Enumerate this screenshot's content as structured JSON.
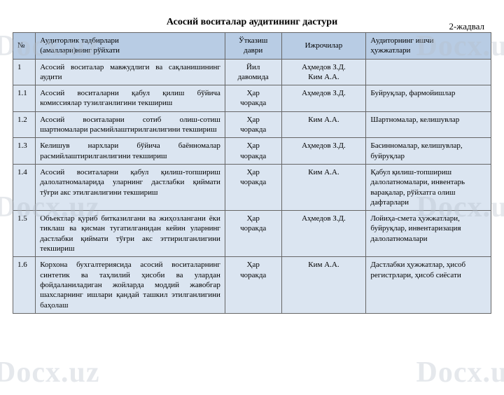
{
  "watermark_text": "Docx.uz",
  "header_label": "2-жадвал",
  "title": "Асосий воситалар аудитининг дастури",
  "columns": {
    "num": "№",
    "activities": "Аудиторлик тадбирлари\n(амаллари)нинг рўйхати",
    "period": "Ўтказиш\nдаври",
    "executors": "Ижрочилар",
    "docs": "Аудиторнинг ишчи\nҳужжатлари"
  },
  "rows": [
    {
      "num": "1",
      "act": "Асосий воситалар мавжудлиги ва сақланишининг аудити",
      "per": "Йил\nдавомида",
      "exec": "Аҳмедов З.Д.\nКим А.А.",
      "doc": ""
    },
    {
      "num": "1.1",
      "act": "Асосий воситаларни қабул қилиш бўйича комиссиялар тузилганлигини текшириш",
      "per": "Ҳар\nчоракда",
      "exec": "Аҳмедов З.Д.",
      "doc": "Буйруқлар, фармойишлар"
    },
    {
      "num": "1.2",
      "act": "Асосий воситаларни сотиб олиш-сотиш шартномалари расмийлаштирилганлигини текшириш",
      "per": "Ҳар\nчоракда",
      "exec": "Ким А.А.",
      "doc": "Шартномалар, келишувлар"
    },
    {
      "num": "1.3",
      "act": "Келишув нархлари бўйича баённомалар расмийлаштирилганлигини текшириш",
      "per": "Ҳар\nчоракда",
      "exec": "Аҳмедов З.Д.",
      "doc": "Басинномалар, келишувлар, буйруқлар"
    },
    {
      "num": "1.4",
      "act": "Асосий воситаларни қабул қилиш-топшириш далолатномаларида уларнинг дастлабки қиймати тўғри акс этилганлигини текшириш",
      "per": "Ҳар\nчоракда",
      "exec": "Ким А.А.",
      "doc": "Қабул қилиш-топшириш далолатномалари, инвентарь варақалар, рўйхатга олиш дафтарлари"
    },
    {
      "num": "1.5",
      "act": "Объектлар қуриб битказилгани ва жиҳозлангани ёки тиклаш ва қисман тугатилганидан кейин уларнинг дастлабки қиймати тўғри акс эттирилганлигини текшириш",
      "per": "Ҳар\nчоракда",
      "exec": "Аҳмедов З.Д.",
      "doc": "Лойиҳа-смета ҳужжатлари, буйруқлар, инвентаризация далолатномалари"
    },
    {
      "num": "1.6",
      "act": "Корхона бухгалтериясида асосий воситаларнинг синтетик ва таҳлилий ҳисоби ва улардан фойдаланиладиган жойларда моддий жавобгар шахсларнинг ишлари қандай ташкил этилганлигини баҳолаш",
      "per": "Ҳар\nчоракда",
      "exec": "Ким А.А.",
      "doc": "Дастлабки ҳужжатлар, ҳисоб регистрлари, ҳисоб сиёсати"
    }
  ],
  "styling": {
    "page_bg": "#ffffff",
    "header_bg": "#b8cce4",
    "cell_bg": "#dbe5f1",
    "border_color": "#666666",
    "watermark_color": "rgba(180,190,200,0.35)",
    "font_family": "Times New Roman",
    "title_fontsize": 14,
    "cell_fontsize": 11,
    "col_widths": {
      "num": 28,
      "act": 235,
      "per": 70,
      "exec": 105,
      "doc": 155
    }
  }
}
